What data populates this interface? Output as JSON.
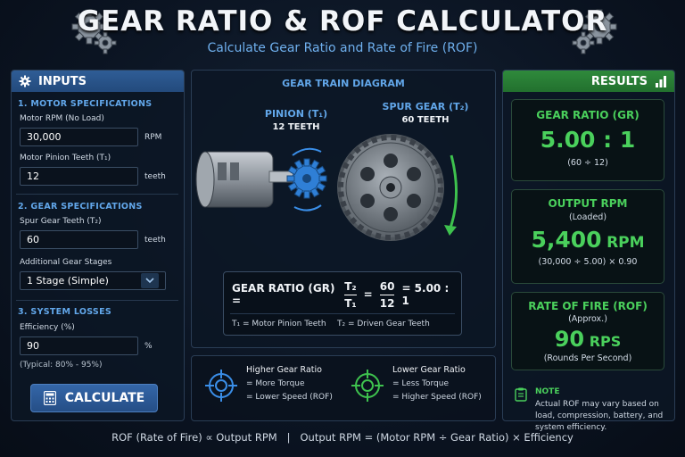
{
  "header": {
    "title": "GEAR RATIO & ROF CALCULATOR",
    "subtitle": "Calculate Gear Ratio and Rate of Fire (ROF)"
  },
  "inputs": {
    "heading": "INPUTS",
    "motor_section": "1. MOTOR SPECIFICATIONS",
    "motor_rpm_label": "Motor RPM (No Load)",
    "motor_rpm_value": "30,000",
    "motor_rpm_unit": "RPM",
    "pinion_label": "Motor Pinion Teeth (T₁)",
    "pinion_value": "12",
    "pinion_unit": "teeth",
    "gear_section": "2. GEAR SPECIFICATIONS",
    "spur_label": "Spur Gear Teeth (T₂)",
    "spur_value": "60",
    "spur_unit": "teeth",
    "stages_label": "Additional Gear Stages",
    "stages_value": "1 Stage (Simple)",
    "loss_section": "3. SYSTEM LOSSES",
    "efficiency_label": "Efficiency (%)",
    "efficiency_value": "90",
    "efficiency_unit": "%",
    "efficiency_hint": "(Typical: 80% - 95%)",
    "calculate_label": "CALCULATE"
  },
  "diagram": {
    "title": "GEAR TRAIN DIAGRAM",
    "pinion_label": "PINION (T₁)",
    "pinion_teeth": "12 TEETH",
    "spur_label": "SPUR GEAR (T₂)",
    "spur_teeth": "60 TEETH",
    "formula_label": "GEAR RATIO (GR) =",
    "t2": "T₂",
    "t1": "T₁",
    "num": "60",
    "den": "12",
    "eq": "=",
    "result": "= 5.00 : 1",
    "legend_t1": "T₁ = Motor Pinion Teeth",
    "legend_t2": "T₂ = Driven Gear Teeth"
  },
  "comparison": {
    "higher_title": "Higher Gear Ratio",
    "higher_1": "= More Torque",
    "higher_2": "= Lower Speed (ROF)",
    "lower_title": "Lower Gear Ratio",
    "lower_1": "= Less Torque",
    "lower_2": "= Higher Speed (ROF)"
  },
  "results": {
    "heading": "RESULTS",
    "gr_title": "GEAR RATIO (GR)",
    "gr_value": "5.00 : 1",
    "gr_calc": "(60 ÷ 12)",
    "rpm_title": "OUTPUT RPM",
    "rpm_sub": "(Loaded)",
    "rpm_value": "5,400",
    "rpm_unit": "RPM",
    "rpm_calc": "(30,000 ÷ 5.00) × 0.90",
    "rof_title": "RATE OF FIRE (ROF)",
    "rof_sub": "(Approx.)",
    "rof_value": "90",
    "rof_unit": "RPS",
    "rof_calc": "(Rounds Per Second)",
    "note_title": "NOTE",
    "note_text": "Actual ROF may vary based on load, compression, battery, and system efficiency."
  },
  "footer": {
    "text": "ROF (Rate of Fire) ∝ Output RPM   |   Output RPM = (Motor RPM ÷ Gear Ratio) × Efficiency"
  },
  "colors": {
    "accent_blue": "#62a7ea",
    "accent_green": "#4ad05c",
    "panel_bg": "#0c1624"
  }
}
